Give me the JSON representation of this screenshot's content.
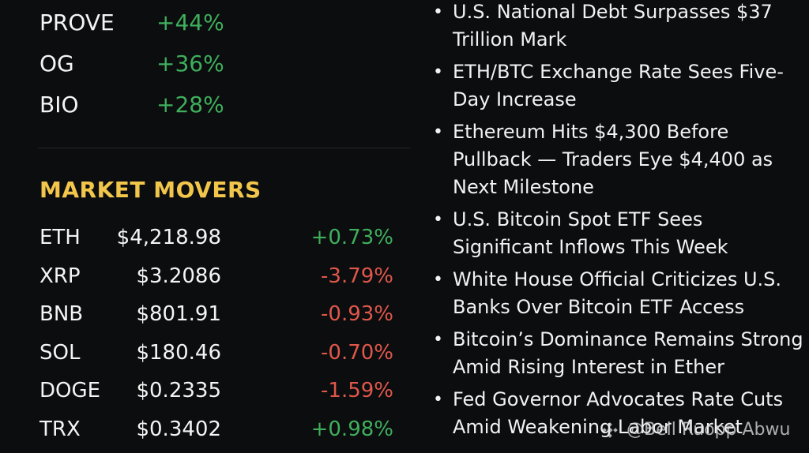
{
  "top_gainers": [
    {
      "symbol": "PROVE",
      "change": "+44%"
    },
    {
      "symbol": "OG",
      "change": "+36%"
    },
    {
      "symbol": "BIO",
      "change": "+28%"
    }
  ],
  "market_movers": {
    "title": "MARKET MOVERS",
    "rows": [
      {
        "symbol": "ETH",
        "price": "$4,218.98",
        "change": "+0.73%",
        "direction": "up"
      },
      {
        "symbol": "XRP",
        "price": "$3.2086",
        "change": "-3.79%",
        "direction": "down"
      },
      {
        "symbol": "BNB",
        "price": "$801.91",
        "change": "-0.93%",
        "direction": "down"
      },
      {
        "symbol": "SOL",
        "price": "$180.46",
        "change": "-0.70%",
        "direction": "down"
      },
      {
        "symbol": "DOGE",
        "price": "$0.2335",
        "change": "-1.59%",
        "direction": "down"
      },
      {
        "symbol": "TRX",
        "price": "$0.3402",
        "change": "+0.98%",
        "direction": "up"
      }
    ]
  },
  "news": [
    {
      "headline": "U.S. National Debt Surpasses $37 Trillion Mark"
    },
    {
      "headline": "ETH/BTC Exchange Rate Sees Five-Day Increase"
    },
    {
      "headline": "Ethereum Hits $4,300 Before Pullback — Traders Eye $4,400 as Next Milestone"
    },
    {
      "headline": "U.S. Bitcoin Spot ETF Sees Significant Inflows This Week"
    },
    {
      "headline": "White House Official Criticizes U.S. Banks Over Bitcoin ETF Access"
    },
    {
      "headline": "Bitcoin’s Dominance Remains Strong Amid Rising Interest in Ether"
    },
    {
      "headline": "Fed Governor Advocates Rate Cuts Amid Weakening Labor Market"
    }
  ],
  "watermark": {
    "text": "@Bell Ruopp Abwu",
    "icon": "binance-logo-icon"
  },
  "colors": {
    "background": "#0b0d0e",
    "positive": "#3fae5d",
    "negative": "#e0574b",
    "accent": "#f2c64b"
  }
}
